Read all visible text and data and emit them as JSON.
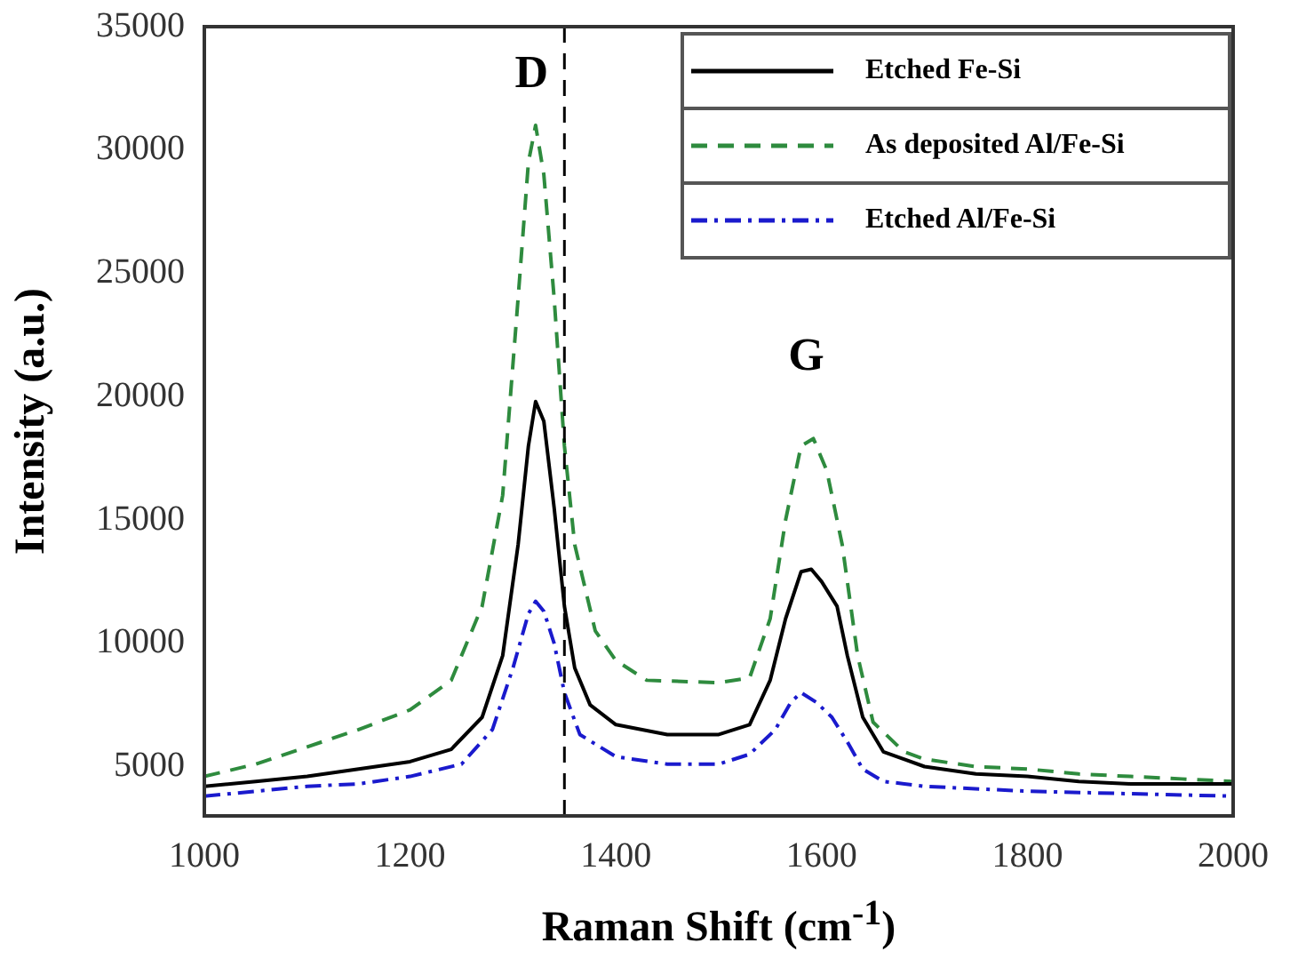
{
  "chart_data": {
    "type": "line",
    "xlabel": "Raman Shift (cm$^{-1}$)",
    "ylabel": "Intensity (a.u.)",
    "xlim": [
      1000,
      2000
    ],
    "xticks": [
      1000,
      1200,
      1400,
      1600,
      1800,
      2000
    ],
    "ylim": [
      3000,
      35000
    ],
    "yticks": [
      5000,
      10000,
      15000,
      20000,
      25000,
      30000,
      35000
    ],
    "grid": false,
    "legend": "top right",
    "marker": "none",
    "ref_lines": [
      {
        "axis": "x",
        "value": 1350,
        "color": "#000000",
        "line_style": "dashed"
      }
    ],
    "annotations": [
      "D",
      "G"
    ],
    "series": [
      {
        "name": "Etched Fe-Si",
        "color": "#000000",
        "line_style": "solid",
        "x": [
          1000,
          1050,
          1100,
          1150,
          1200,
          1240,
          1270,
          1290,
          1305,
          1315,
          1322,
          1330,
          1340,
          1350,
          1360,
          1375,
          1400,
          1450,
          1500,
          1530,
          1550,
          1565,
          1580,
          1590,
          1600,
          1615,
          1625,
          1640,
          1660,
          1700,
          1750,
          1800,
          1850,
          1900,
          1950,
          2000
        ],
        "values": [
          4200,
          4400,
          4600,
          4900,
          5200,
          5700,
          7000,
          9500,
          14000,
          18000,
          19800,
          19000,
          15500,
          11500,
          9000,
          7500,
          6700,
          6300,
          6300,
          6700,
          8500,
          11000,
          12900,
          13000,
          12500,
          11500,
          9500,
          7000,
          5600,
          5000,
          4700,
          4600,
          4400,
          4300,
          4300,
          4300
        ]
      },
      {
        "name": "As deposited Al/Fe-Si",
        "color": "#2e8b3e",
        "line_style": "dashed",
        "x": [
          1000,
          1050,
          1100,
          1150,
          1200,
          1240,
          1270,
          1290,
          1305,
          1315,
          1322,
          1330,
          1340,
          1350,
          1360,
          1380,
          1400,
          1430,
          1500,
          1530,
          1550,
          1565,
          1580,
          1592,
          1605,
          1620,
          1635,
          1650,
          1680,
          1700,
          1750,
          1800,
          1850,
          1900,
          1950,
          2000
        ],
        "values": [
          4600,
          5100,
          5800,
          6500,
          7300,
          8500,
          11500,
          16000,
          24000,
          29500,
          31000,
          29000,
          24000,
          18000,
          14000,
          10500,
          9300,
          8500,
          8400,
          8600,
          11000,
          15000,
          18000,
          18300,
          17000,
          14000,
          9500,
          6800,
          5600,
          5300,
          5000,
          4900,
          4700,
          4600,
          4500,
          4400
        ]
      },
      {
        "name": "Etched Al/Fe-Si",
        "color": "#1a1acd",
        "line_style": "dotted",
        "x": [
          1000,
          1050,
          1100,
          1150,
          1200,
          1250,
          1280,
          1300,
          1315,
          1322,
          1330,
          1340,
          1350,
          1365,
          1400,
          1450,
          1500,
          1530,
          1555,
          1570,
          1580,
          1595,
          1610,
          1625,
          1640,
          1660,
          1700,
          1800,
          1900,
          2000
        ],
        "values": [
          3800,
          4000,
          4200,
          4300,
          4600,
          5100,
          6500,
          9000,
          11200,
          11700,
          11300,
          10000,
          8000,
          6300,
          5400,
          5100,
          5100,
          5500,
          6500,
          7600,
          8000,
          7600,
          7000,
          6000,
          4900,
          4400,
          4200,
          4000,
          3900,
          3800
        ]
      }
    ]
  }
}
